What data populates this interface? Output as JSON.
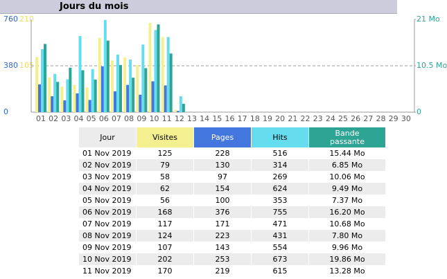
{
  "header": {
    "title": "Jours du mois"
  },
  "chart_data": {
    "type": "bar",
    "categories": [
      "01",
      "02",
      "03",
      "04",
      "05",
      "06",
      "07",
      "08",
      "09",
      "10",
      "11",
      "12",
      "13",
      "14",
      "15",
      "16",
      "17",
      "18",
      "19",
      "20",
      "21",
      "22",
      "23",
      "24",
      "25",
      "26",
      "27",
      "28",
      "29",
      "30"
    ],
    "ylim": [
      0,
      760
    ],
    "yticks": [
      0,
      380,
      760
    ],
    "y2lim": [
      0,
      21
    ],
    "y2ticks": [
      0,
      {
        "value": 10.5,
        "label": "10.5 Mo"
      },
      {
        "value": 21,
        "label": "21 Mo"
      }
    ],
    "y3lim": [
      0,
      210
    ],
    "y3ticks": [
      105,
      210
    ],
    "grid": true,
    "series": [
      {
        "color": "#f4f090",
        "axis": "y3",
        "values": [
          125,
          79,
          58,
          62,
          56,
          168,
          117,
          124,
          107,
          202,
          170,
          5,
          null,
          null,
          null,
          null,
          null,
          null,
          null,
          null,
          null,
          null,
          null,
          null,
          null,
          null,
          null,
          null,
          null,
          null
        ]
      },
      {
        "color": "#4477dd",
        "axis": "y",
        "values": [
          228,
          130,
          97,
          154,
          100,
          376,
          171,
          223,
          143,
          253,
          219,
          10,
          null,
          null,
          null,
          null,
          null,
          null,
          null,
          null,
          null,
          null,
          null,
          null,
          null,
          null,
          null,
          null,
          null,
          null
        ]
      },
      {
        "color": "#66ddee",
        "axis": "y",
        "values": [
          516,
          314,
          269,
          624,
          353,
          755,
          471,
          431,
          554,
          673,
          615,
          130,
          null,
          null,
          null,
          null,
          null,
          null,
          null,
          null,
          null,
          null,
          null,
          null,
          null,
          null,
          null,
          null,
          null,
          null
        ]
      },
      {
        "color": "#2ea495",
        "axis": "y2",
        "values": [
          15.44,
          6.85,
          10.06,
          9.49,
          7.37,
          16.2,
          10.68,
          7.8,
          9.96,
          19.86,
          13.28,
          1.9,
          null,
          null,
          null,
          null,
          null,
          null,
          null,
          null,
          null,
          null,
          null,
          null,
          null,
          null,
          null,
          null,
          null,
          null
        ]
      }
    ]
  },
  "table": {
    "columns": [
      "Jour",
      "Visites",
      "Pages",
      "Hits",
      "Bande passante"
    ],
    "rows": [
      [
        "01 Nov 2019",
        "125",
        "228",
        "516",
        "15.44 Mo"
      ],
      [
        "02 Nov 2019",
        "79",
        "130",
        "314",
        "6.85 Mo"
      ],
      [
        "03 Nov 2019",
        "58",
        "97",
        "269",
        "10.06 Mo"
      ],
      [
        "04 Nov 2019",
        "62",
        "154",
        "624",
        "9.49 Mo"
      ],
      [
        "05 Nov 2019",
        "56",
        "100",
        "353",
        "7.37 Mo"
      ],
      [
        "06 Nov 2019",
        "168",
        "376",
        "755",
        "16.20 Mo"
      ],
      [
        "07 Nov 2019",
        "117",
        "171",
        "471",
        "10.68 Mo"
      ],
      [
        "08 Nov 2019",
        "124",
        "223",
        "431",
        "7.80 Mo"
      ],
      [
        "09 Nov 2019",
        "107",
        "143",
        "554",
        "9.96 Mo"
      ],
      [
        "10 Nov 2019",
        "202",
        "253",
        "673",
        "19.86 Mo"
      ],
      [
        "11 Nov 2019",
        "170",
        "219",
        "615",
        "13.28 Mo"
      ]
    ]
  }
}
